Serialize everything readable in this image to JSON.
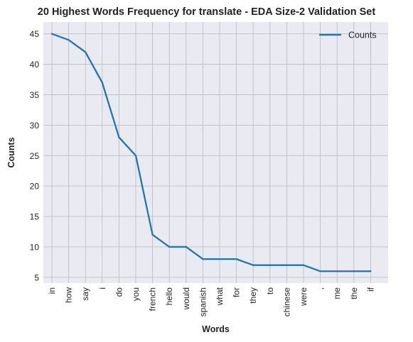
{
  "chart_data": {
    "type": "line",
    "title": "20 Highest Words Frequency for translate - EDA Size-2 Validation Set",
    "xlabel": "Words",
    "ylabel": "Counts",
    "categories": [
      "in",
      "how",
      "say",
      "i",
      "do",
      "you",
      "french",
      "hello",
      "would",
      "spanish",
      "what",
      "for",
      "they",
      "to",
      "chinese",
      "were",
      ",",
      "me",
      "the",
      "if"
    ],
    "series": [
      {
        "name": "Counts",
        "values": [
          45,
          44,
          42,
          37,
          28,
          25,
          12,
          10,
          10,
          8,
          8,
          8,
          7,
          7,
          7,
          7,
          6,
          6,
          6,
          6
        ],
        "color": "#1f77b4"
      }
    ],
    "ylim": [
      4.05,
      46.95
    ],
    "yticks": [
      5,
      10,
      15,
      20,
      25,
      30,
      35,
      40,
      45
    ],
    "grid": true,
    "legend_position": "top-right",
    "colors": {
      "plot_background": "#eaeaf2",
      "grid": "#c0c0c0",
      "line": "#1f77b4"
    }
  }
}
